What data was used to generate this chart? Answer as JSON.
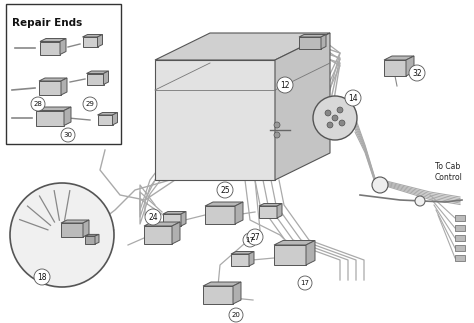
{
  "bg_color": "#ffffff",
  "repair_label": "Repair Ends",
  "to_cab_text": "To Cab\nControl",
  "wire_color": "#aaaaaa",
  "wire_dark": "#888888",
  "line_color": "#666666",
  "connector_fill": "#cccccc",
  "connector_edge": "#555555",
  "box_top": "#d4d4d4",
  "box_front": "#e4e4e4",
  "box_right": "#c8c8c8",
  "box_side_top": "#bcbcbc"
}
